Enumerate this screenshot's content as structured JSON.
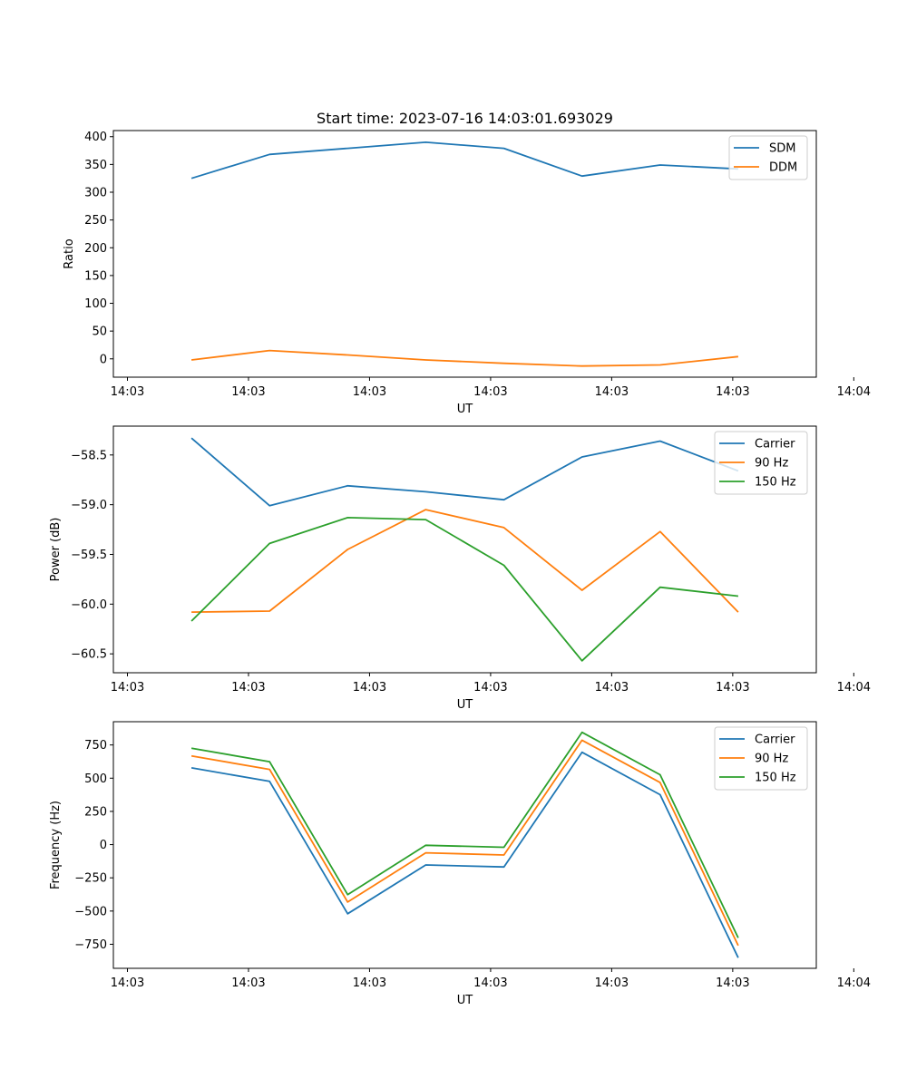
{
  "figure_title": "Start time: 2023-07-16 14:03:01.693029",
  "colors": {
    "c0": "#1f77b4",
    "c1": "#ff7f0e",
    "c2": "#2ca02c"
  },
  "chart_data": [
    {
      "type": "line",
      "title": "Start time: 2023-07-16 14:03:01.693029",
      "xlabel": "UT",
      "ylabel": "Ratio",
      "x": [
        1,
        2,
        3,
        4,
        5,
        6,
        7,
        8
      ],
      "xlim": [
        0,
        9
      ],
      "xticks": [
        0.18,
        1.73,
        3.28,
        4.83,
        6.38,
        7.93,
        9.48
      ],
      "xticklabels": [
        "14:03",
        "14:03",
        "14:03",
        "14:03",
        "14:03",
        "14:03",
        "14:04"
      ],
      "ylim": [
        -33,
        411
      ],
      "yticks": [
        0,
        50,
        100,
        150,
        200,
        250,
        300,
        350,
        400
      ],
      "yticklabels": [
        "0",
        "50",
        "100",
        "150",
        "200",
        "250",
        "300",
        "350",
        "400"
      ],
      "legend": "top-right",
      "grid": false,
      "series": [
        {
          "name": "SDM",
          "color": "#1f77b4",
          "values": [
            325,
            368,
            379,
            390,
            379,
            329,
            349,
            342
          ]
        },
        {
          "name": "DDM",
          "color": "#ff7f0e",
          "values": [
            -2,
            15,
            7,
            -2,
            -8,
            -13,
            -11,
            4
          ]
        }
      ]
    },
    {
      "type": "line",
      "title": "",
      "xlabel": "UT",
      "ylabel": "Power (dB)",
      "x": [
        1,
        2,
        3,
        4,
        5,
        6,
        7,
        8
      ],
      "xlim": [
        0,
        9
      ],
      "xticks": [
        0.18,
        1.73,
        3.28,
        4.83,
        6.38,
        7.93,
        9.48
      ],
      "xticklabels": [
        "14:03",
        "14:03",
        "14:03",
        "14:03",
        "14:03",
        "14:03",
        "14:04"
      ],
      "ylim": [
        -60.69,
        -58.21
      ],
      "yticks": [
        -58.5,
        -59.0,
        -59.5,
        -60.0,
        -60.5
      ],
      "yticklabels": [
        "−58.5",
        "−59.0",
        "−59.5",
        "−60.0",
        "−60.5"
      ],
      "legend": "top-right",
      "grid": false,
      "series": [
        {
          "name": "Carrier",
          "color": "#1f77b4",
          "values": [
            -58.33,
            -59.01,
            -58.81,
            -58.87,
            -58.95,
            -58.52,
            -58.36,
            -58.66
          ]
        },
        {
          "name": "90 Hz",
          "color": "#ff7f0e",
          "values": [
            -60.08,
            -60.07,
            -59.45,
            -59.05,
            -59.23,
            -59.86,
            -59.27,
            -60.08
          ]
        },
        {
          "name": "150 Hz",
          "color": "#2ca02c",
          "values": [
            -60.17,
            -59.39,
            -59.13,
            -59.15,
            -59.61,
            -60.57,
            -59.83,
            -59.92
          ]
        }
      ]
    },
    {
      "type": "line",
      "title": "",
      "xlabel": "UT",
      "ylabel": "Frequency (Hz)",
      "x": [
        1,
        2,
        3,
        4,
        5,
        6,
        7,
        8
      ],
      "xlim": [
        0,
        9
      ],
      "xticks": [
        0.18,
        1.73,
        3.28,
        4.83,
        6.38,
        7.93,
        9.48
      ],
      "xticklabels": [
        "14:03",
        "14:03",
        "14:03",
        "14:03",
        "14:03",
        "14:03",
        "14:04"
      ],
      "ylim": [
        -931,
        925
      ],
      "yticks": [
        750,
        500,
        250,
        0,
        -250,
        -500,
        -750
      ],
      "yticklabels": [
        "750",
        "500",
        "250",
        "0",
        "−250",
        "−500",
        "−750"
      ],
      "legend": "top-right",
      "grid": false,
      "series": [
        {
          "name": "Carrier",
          "color": "#1f77b4",
          "values": [
            578,
            476,
            -520,
            -153,
            -168,
            695,
            376,
            -851
          ]
        },
        {
          "name": "90 Hz",
          "color": "#ff7f0e",
          "values": [
            667,
            566,
            -432,
            -62,
            -78,
            786,
            467,
            -760
          ]
        },
        {
          "name": "150 Hz",
          "color": "#2ca02c",
          "values": [
            725,
            624,
            -376,
            -5,
            -20,
            845,
            526,
            -702
          ]
        }
      ]
    }
  ]
}
